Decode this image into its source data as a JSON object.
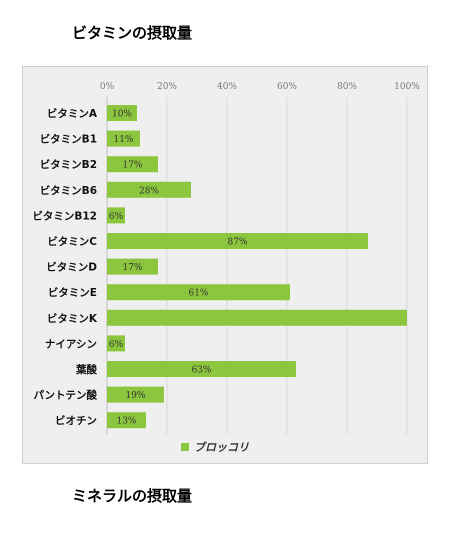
{
  "headings": {
    "vitamins": "ビタミンの摂取量",
    "minerals": "ミネラルの摂取量"
  },
  "colors": {
    "bar": "#8cc63e",
    "grid": "#d9d9d9",
    "background": "#efefef"
  },
  "chart_data": {
    "type": "bar",
    "orientation": "horizontal",
    "categories": [
      "ビタミンA",
      "ビタミンB1",
      "ビタミンB2",
      "ビタミンB6",
      "ビタミンB12",
      "ビタミンC",
      "ビタミンD",
      "ビタミンE",
      "ビタミンK",
      "ナイアシン",
      "葉酸",
      "パントテン酸",
      "ビオチン"
    ],
    "series": [
      {
        "name": "ブロッコリ",
        "values": [
          10,
          11,
          17,
          28,
          6,
          87,
          17,
          61,
          100,
          6,
          63,
          19,
          13
        ],
        "data_labels": [
          "10%",
          "11%",
          "17%",
          "28%",
          "6%",
          "87%",
          "17%",
          "61%",
          "",
          "6%",
          "63%",
          "19%",
          "13%"
        ]
      }
    ],
    "xlim": [
      0,
      100
    ],
    "x_ticks": [
      "0%",
      "20%",
      "40%",
      "60%",
      "80%",
      "100%"
    ],
    "x_tick_values": [
      0,
      20,
      40,
      60,
      80,
      100
    ],
    "axis_position": "top",
    "grid": true,
    "legend_position": "bottom",
    "title": "",
    "xlabel": "",
    "ylabel": ""
  }
}
